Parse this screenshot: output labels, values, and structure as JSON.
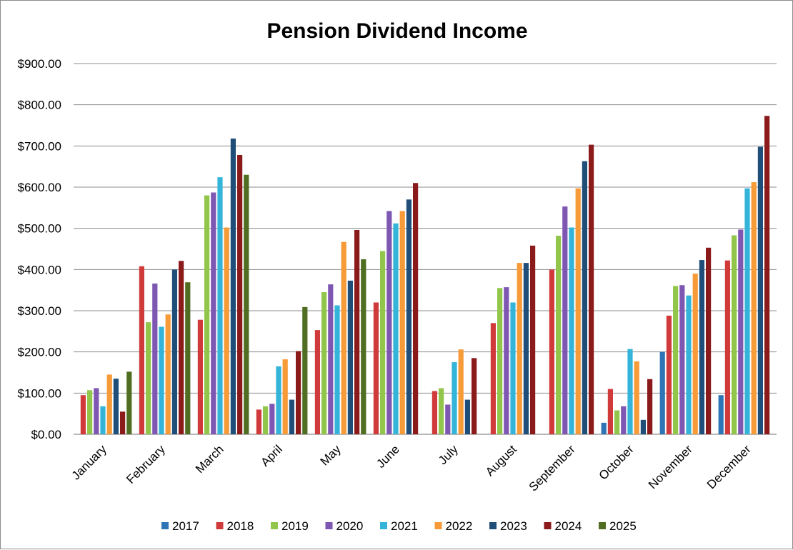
{
  "chart_data": {
    "type": "bar",
    "title": "Pension Dividend Income",
    "xlabel": "",
    "ylabel": "",
    "ylim": [
      0,
      900
    ],
    "y_ticks": [
      "$0.00",
      "$100.00",
      "$200.00",
      "$300.00",
      "$400.00",
      "$500.00",
      "$600.00",
      "$700.00",
      "$800.00",
      "$900.00"
    ],
    "grid": true,
    "legend_position": "bottom",
    "categories": [
      "January",
      "February",
      "March",
      "April",
      "May",
      "June",
      "July",
      "August",
      "September",
      "October",
      "November",
      "December"
    ],
    "series": [
      {
        "name": "2017",
        "color": "#2e75b6",
        "values": [
          0,
          0,
          0,
          0,
          0,
          0,
          0,
          0,
          0,
          28,
          200,
          95
        ]
      },
      {
        "name": "2018",
        "color": "#d13a3a",
        "values": [
          95,
          408,
          278,
          60,
          253,
          320,
          105,
          270,
          400,
          110,
          288,
          422
        ]
      },
      {
        "name": "2019",
        "color": "#92c64a",
        "values": [
          107,
          272,
          580,
          68,
          345,
          445,
          112,
          355,
          482,
          58,
          360,
          483
        ]
      },
      {
        "name": "2020",
        "color": "#7e57b3",
        "values": [
          112,
          366,
          587,
          74,
          364,
          542,
          72,
          357,
          553,
          68,
          362,
          497
        ]
      },
      {
        "name": "2021",
        "color": "#33b4d8",
        "values": [
          68,
          261,
          624,
          165,
          313,
          512,
          175,
          320,
          502,
          207,
          337,
          597
        ]
      },
      {
        "name": "2022",
        "color": "#f79a38",
        "values": [
          145,
          291,
          502,
          182,
          467,
          542,
          206,
          416,
          597,
          177,
          390,
          612
        ]
      },
      {
        "name": "2023",
        "color": "#1f4e79",
        "values": [
          135,
          400,
          718,
          84,
          373,
          570,
          84,
          416,
          663,
          35,
          423,
          698
        ]
      },
      {
        "name": "2024",
        "color": "#8b1a1a",
        "values": [
          55,
          421,
          678,
          202,
          496,
          610,
          185,
          458,
          703,
          134,
          453,
          773
        ]
      },
      {
        "name": "2025",
        "color": "#4f6e22",
        "values": [
          152,
          369,
          630,
          309,
          425,
          0,
          0,
          0,
          0,
          0,
          0,
          0
        ]
      }
    ]
  }
}
